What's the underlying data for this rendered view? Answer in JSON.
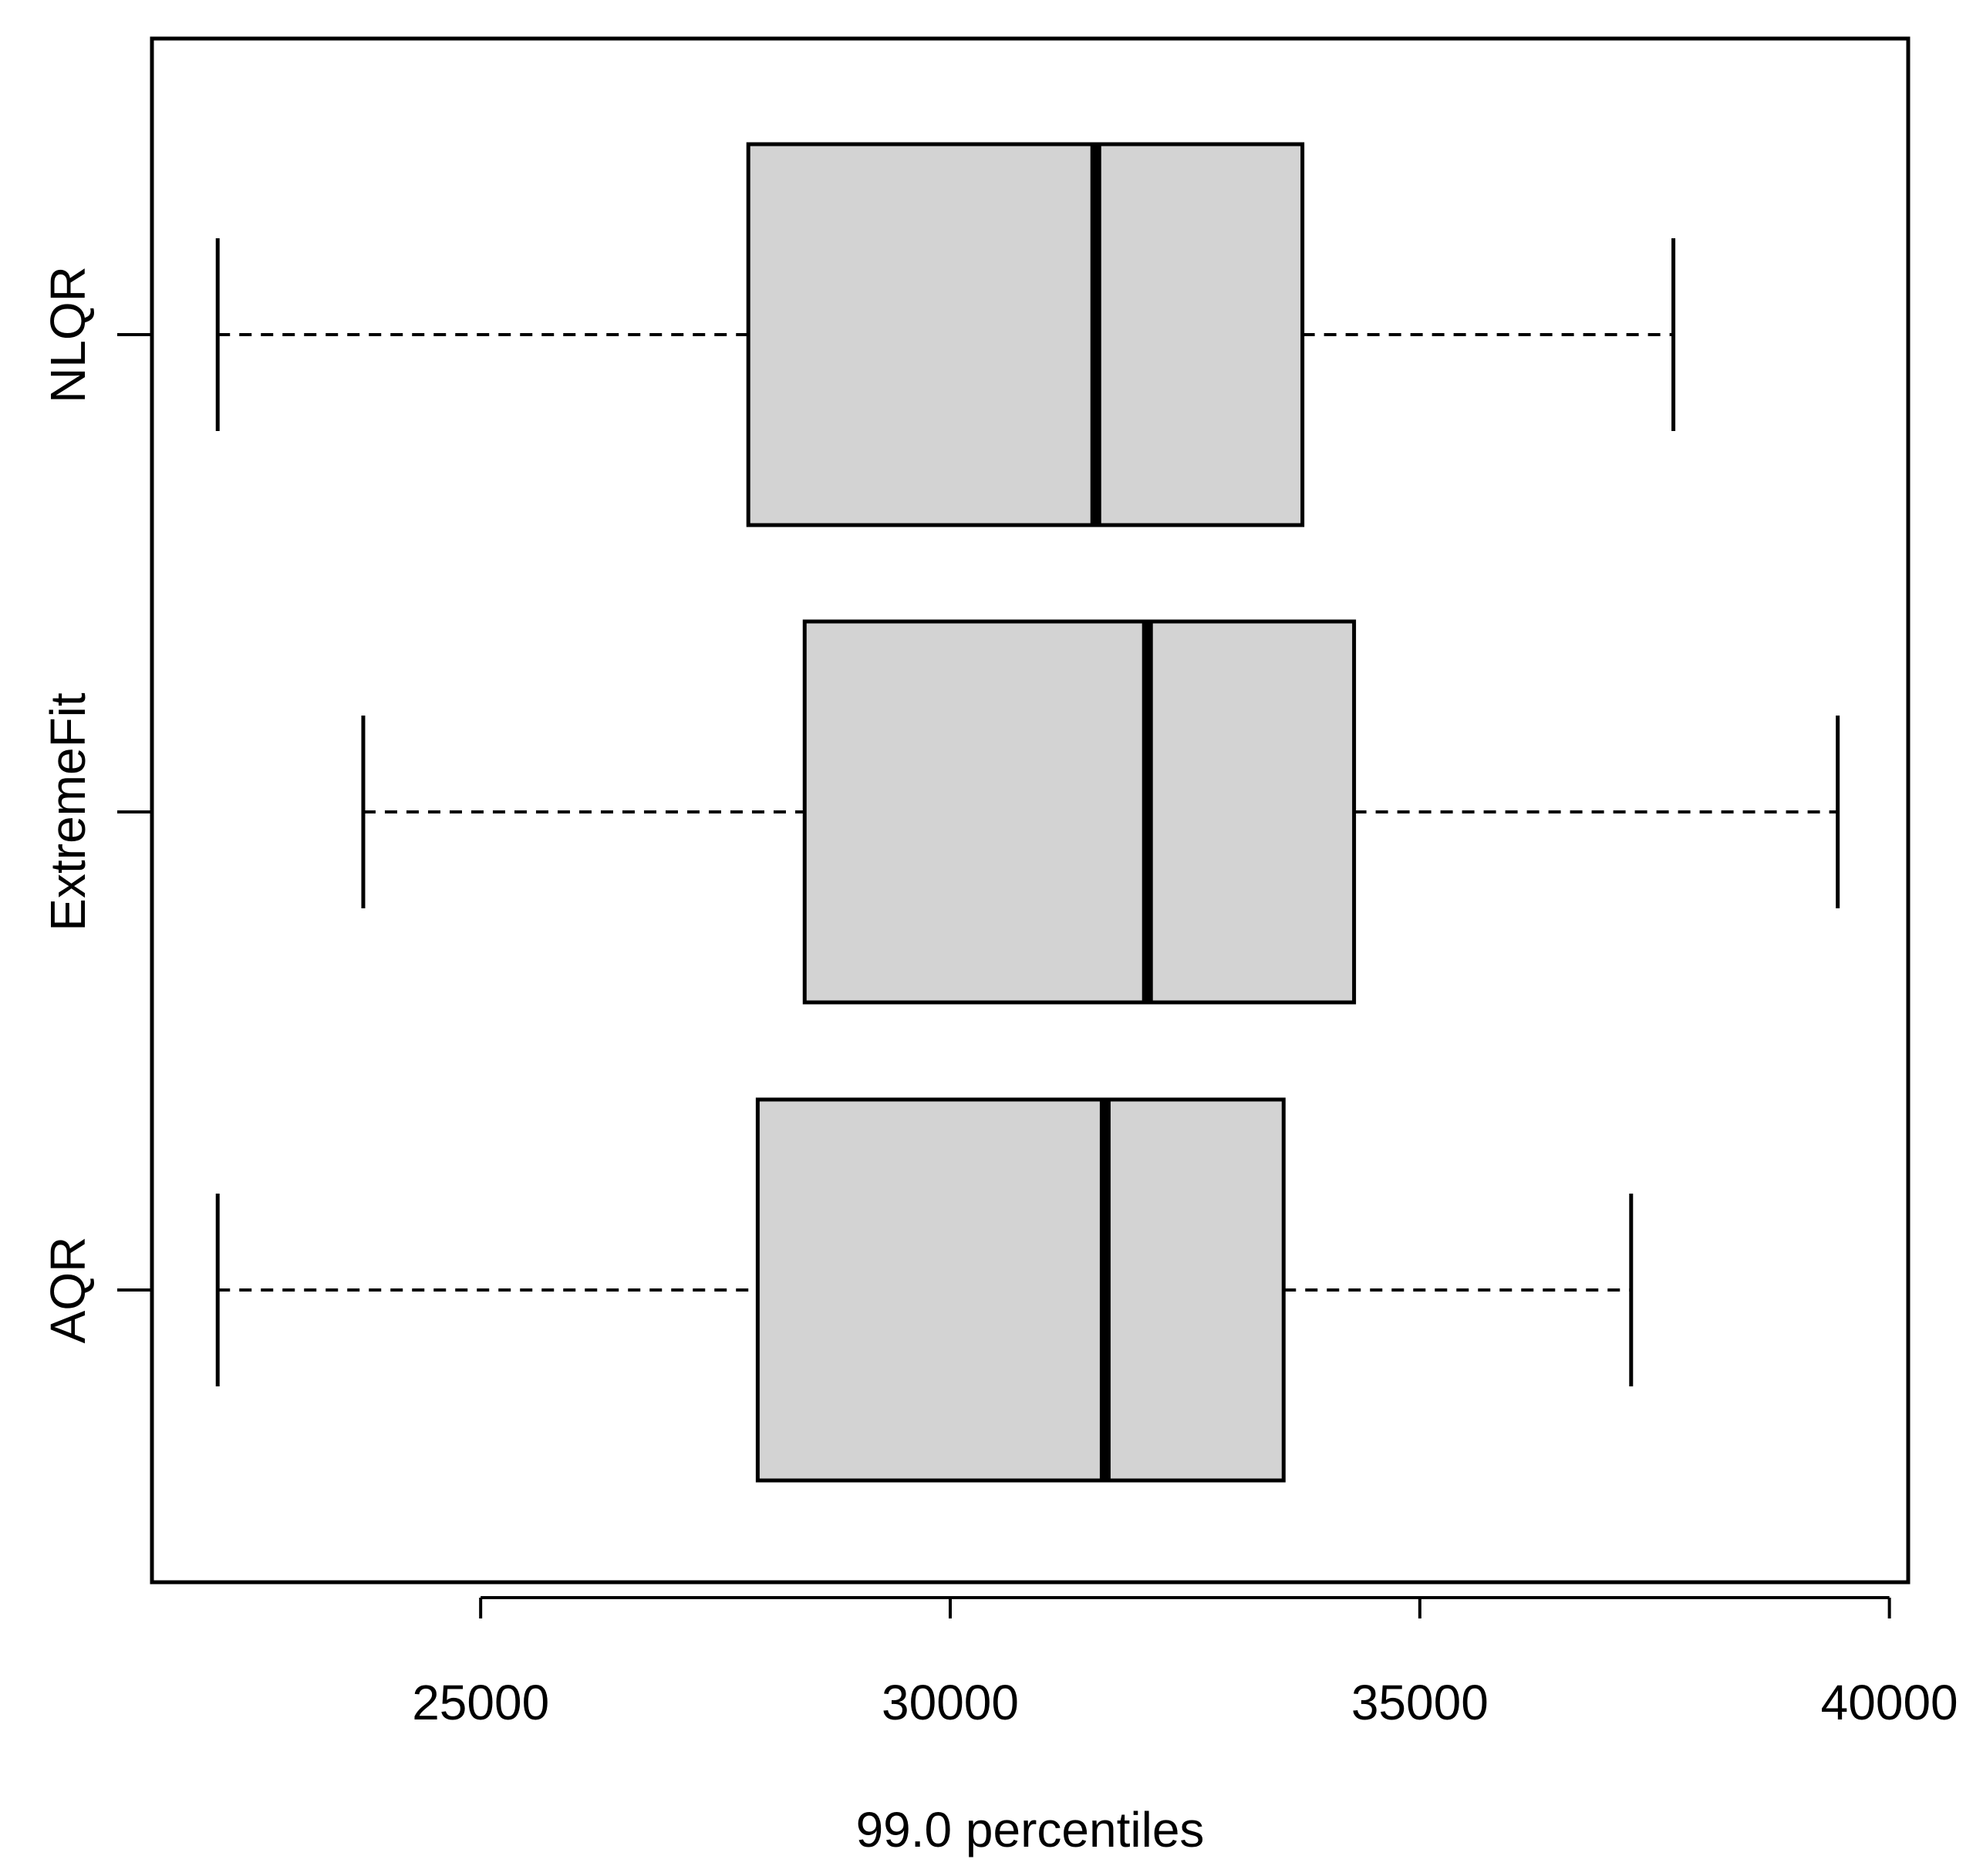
{
  "chart_data": {
    "type": "boxplot",
    "orientation": "horizontal",
    "title": "",
    "xlabel": "99.0 percentiles",
    "ylabel": "",
    "xlim": [
      21500,
      40200
    ],
    "xticks": [
      25000,
      30000,
      35000,
      40000
    ],
    "xtick_labels": [
      "25000",
      "30000",
      "35000",
      "40000"
    ],
    "grid": false,
    "legend": "none",
    "box_fill": "#d3d3d3",
    "line_color": "#000000",
    "categories": [
      "AQR",
      "ExtremeFit",
      "NLQR"
    ],
    "boxes": [
      {
        "label": "AQR",
        "whisker_low": 22200,
        "q1": 27950,
        "median": 31650,
        "q3": 33550,
        "whisker_high": 37250
      },
      {
        "label": "ExtremeFit",
        "whisker_low": 23750,
        "q1": 28450,
        "median": 32100,
        "q3": 34300,
        "whisker_high": 39450
      },
      {
        "label": "NLQR",
        "whisker_low": 22200,
        "q1": 27850,
        "median": 31550,
        "q3": 33750,
        "whisker_high": 37700
      }
    ]
  }
}
